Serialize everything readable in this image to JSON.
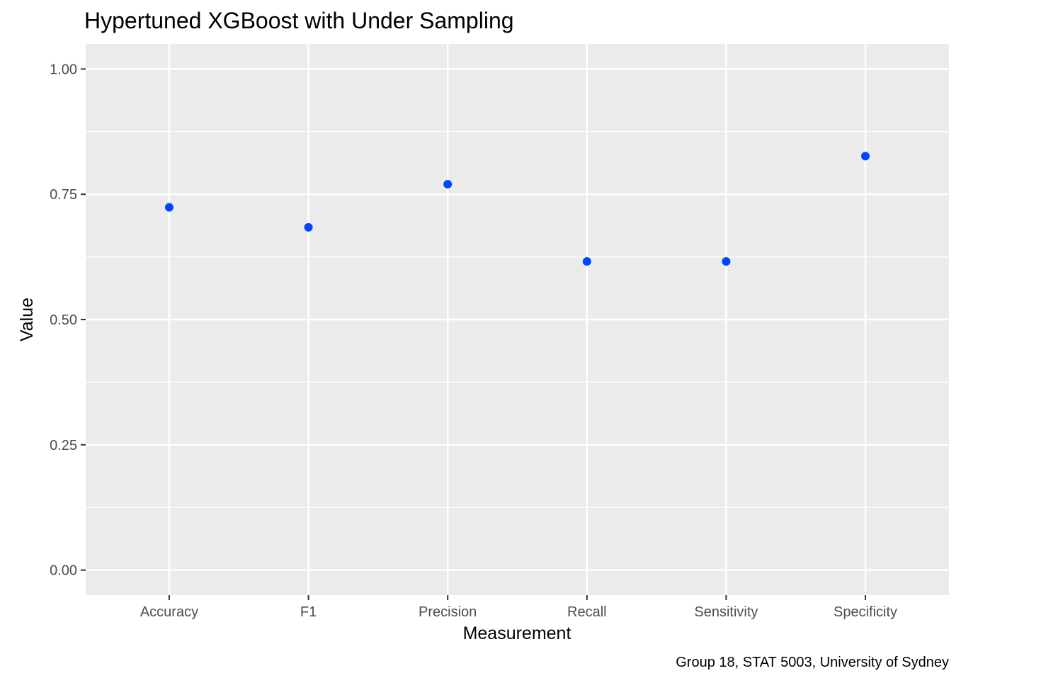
{
  "chart_data": {
    "type": "scatter",
    "title": "Hypertuned XGBoost with Under Sampling",
    "xlabel": "Measurement",
    "ylabel": "Value",
    "caption": "Group 18, STAT 5003, University of Sydney",
    "categories": [
      "Accuracy",
      "F1",
      "Precision",
      "Recall",
      "Sensitivity",
      "Specificity"
    ],
    "values": [
      0.724,
      0.684,
      0.77,
      0.616,
      0.616,
      0.826
    ],
    "yticks": [
      "0.00",
      "0.25",
      "0.50",
      "0.75",
      "1.00"
    ],
    "ytick_values": [
      0,
      0.25,
      0.5,
      0.75,
      1.0
    ],
    "ylim": [
      -0.05,
      1.05
    ],
    "grid": true,
    "colors": {
      "panel": "#ebebeb",
      "grid": "#ffffff",
      "point": "#0044ff",
      "tick": "#333333"
    }
  }
}
